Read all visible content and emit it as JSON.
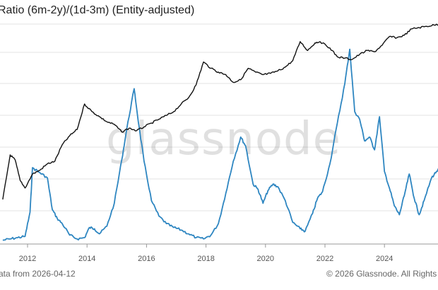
{
  "title": "Ratio (6m-2y)/(1d-3m) (Entity-adjusted)",
  "watermark": "glassnode",
  "footer": {
    "left": "ata from 2026-04-12",
    "right": "© 2026 Glassnode. All Rights"
  },
  "colors": {
    "ratio_series": "#2e86c1",
    "price_series": "#111111",
    "grid": "#e3e3e3",
    "axis": "#999999"
  },
  "chart_data": {
    "type": "line",
    "title": "Ratio (6m-2y)/(1d-3m) (Entity-adjusted)",
    "xlabel": "",
    "ylabel": "",
    "x_axis": {
      "type": "date",
      "range": [
        "2011-03-01",
        "2025-12-31"
      ],
      "ticks": [
        "2012",
        "2014",
        "2016",
        "2018",
        "2020",
        "2022",
        "2024"
      ]
    },
    "grid": true,
    "legend": "none",
    "y_axis": {
      "left_labels": "none visible"
    },
    "series": [
      {
        "color": "#2e86c1",
        "points": [
          [
            "2011-03",
            0.3
          ],
          [
            "2011-06",
            0.4
          ],
          [
            "2011-09",
            0.5
          ],
          [
            "2011-12",
            0.6
          ],
          [
            "2012-02",
            2.5
          ],
          [
            "2012-03",
            6.0
          ],
          [
            "2012-06",
            5.6
          ],
          [
            "2012-09",
            5.2
          ],
          [
            "2012-11",
            2.7
          ],
          [
            "2013-01",
            2.0
          ],
          [
            "2013-03",
            1.6
          ],
          [
            "2013-06",
            0.7
          ],
          [
            "2013-09",
            0.4
          ],
          [
            "2013-12",
            0.5
          ],
          [
            "2014-02",
            1.3
          ],
          [
            "2014-04",
            1.2
          ],
          [
            "2014-06",
            0.8
          ],
          [
            "2014-09",
            1.4
          ],
          [
            "2014-12",
            3.2
          ],
          [
            "2015-03",
            6.6
          ],
          [
            "2015-05",
            9.0
          ],
          [
            "2015-08",
            12.2
          ],
          [
            "2015-10",
            9.2
          ],
          [
            "2015-12",
            6.5
          ],
          [
            "2016-03",
            3.4
          ],
          [
            "2016-06",
            2.2
          ],
          [
            "2016-09",
            1.6
          ],
          [
            "2016-12",
            1.3
          ],
          [
            "2017-03",
            1.1
          ],
          [
            "2017-06",
            0.8
          ],
          [
            "2017-09",
            0.5
          ],
          [
            "2017-12",
            0.4
          ],
          [
            "2018-03",
            0.7
          ],
          [
            "2018-06",
            1.6
          ],
          [
            "2018-09",
            4.0
          ],
          [
            "2018-12",
            6.5
          ],
          [
            "2019-03",
            8.4
          ],
          [
            "2019-05",
            7.7
          ],
          [
            "2019-08",
            4.7
          ],
          [
            "2019-10",
            4.3
          ],
          [
            "2019-12",
            3.2
          ],
          [
            "2020-02",
            4.2
          ],
          [
            "2020-04",
            4.7
          ],
          [
            "2020-06",
            4.5
          ],
          [
            "2020-09",
            3.4
          ],
          [
            "2020-12",
            1.7
          ],
          [
            "2021-03",
            1.2
          ],
          [
            "2021-05",
            1.0
          ],
          [
            "2021-08",
            2.4
          ],
          [
            "2021-10",
            3.6
          ],
          [
            "2021-12",
            4.1
          ],
          [
            "2022-03",
            6.3
          ],
          [
            "2022-06",
            9.5
          ],
          [
            "2022-09",
            12.6
          ],
          [
            "2022-11",
            15.3
          ],
          [
            "2023-01",
            10.4
          ],
          [
            "2023-03",
            9.8
          ],
          [
            "2023-05",
            8.1
          ],
          [
            "2023-07",
            8.4
          ],
          [
            "2023-09",
            7.4
          ],
          [
            "2023-11",
            10.0
          ],
          [
            "2024-01",
            5.7
          ],
          [
            "2024-03",
            4.4
          ],
          [
            "2024-05",
            3.0
          ],
          [
            "2024-07",
            2.3
          ],
          [
            "2024-09",
            3.8
          ],
          [
            "2024-11",
            5.5
          ],
          [
            "2025-01",
            3.6
          ],
          [
            "2025-03",
            2.3
          ],
          [
            "2025-05",
            3.4
          ],
          [
            "2025-08",
            5.2
          ],
          [
            "2025-10",
            5.7
          ],
          [
            "2025-12",
            6.0
          ]
        ]
      },
      {
        "color": "#111111",
        "points": [
          [
            "2011-03",
            3.5
          ],
          [
            "2011-06",
            7.0
          ],
          [
            "2011-08",
            6.6
          ],
          [
            "2011-10",
            5.0
          ],
          [
            "2011-12",
            4.4
          ],
          [
            "2012-03",
            5.5
          ],
          [
            "2012-06",
            5.8
          ],
          [
            "2012-09",
            6.3
          ],
          [
            "2012-12",
            6.5
          ],
          [
            "2013-03",
            7.8
          ],
          [
            "2013-06",
            8.5
          ],
          [
            "2013-09",
            9.0
          ],
          [
            "2013-12",
            11.0
          ],
          [
            "2014-03",
            10.4
          ],
          [
            "2014-06",
            10.0
          ],
          [
            "2014-09",
            9.6
          ],
          [
            "2014-12",
            9.4
          ],
          [
            "2015-03",
            8.8
          ],
          [
            "2015-06",
            9.1
          ],
          [
            "2015-09",
            8.9
          ],
          [
            "2015-12",
            9.2
          ],
          [
            "2016-03",
            9.5
          ],
          [
            "2016-06",
            9.8
          ],
          [
            "2016-09",
            10.1
          ],
          [
            "2016-12",
            10.4
          ],
          [
            "2017-03",
            11.0
          ],
          [
            "2017-06",
            11.5
          ],
          [
            "2017-09",
            12.5
          ],
          [
            "2017-12",
            14.3
          ],
          [
            "2018-03",
            13.8
          ],
          [
            "2018-06",
            13.5
          ],
          [
            "2018-09",
            13.3
          ],
          [
            "2018-12",
            12.7
          ],
          [
            "2019-03",
            12.9
          ],
          [
            "2019-06",
            13.8
          ],
          [
            "2019-09",
            13.5
          ],
          [
            "2019-12",
            13.3
          ],
          [
            "2020-03",
            13.4
          ],
          [
            "2020-06",
            13.6
          ],
          [
            "2020-09",
            13.9
          ],
          [
            "2020-12",
            14.4
          ],
          [
            "2021-03",
            15.9
          ],
          [
            "2021-06",
            15.2
          ],
          [
            "2021-09",
            15.8
          ],
          [
            "2021-11",
            15.9
          ],
          [
            "2022-03",
            15.4
          ],
          [
            "2022-06",
            14.7
          ],
          [
            "2022-09",
            14.6
          ],
          [
            "2022-12",
            14.5
          ],
          [
            "2023-03",
            14.9
          ],
          [
            "2023-06",
            15.2
          ],
          [
            "2023-09",
            15.1
          ],
          [
            "2023-12",
            15.6
          ],
          [
            "2024-03",
            16.3
          ],
          [
            "2024-06",
            16.2
          ],
          [
            "2024-09",
            16.4
          ],
          [
            "2024-12",
            16.9
          ],
          [
            "2025-03",
            17.0
          ],
          [
            "2025-06",
            17.1
          ],
          [
            "2025-09",
            17.2
          ],
          [
            "2025-12",
            17.3
          ]
        ]
      }
    ]
  }
}
